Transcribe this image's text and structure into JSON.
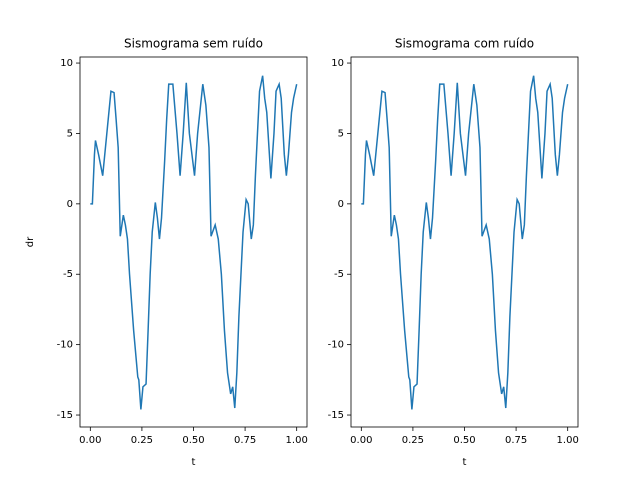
{
  "chart_data": [
    {
      "type": "line",
      "title": "Sismograma sem ruído",
      "xlabel": "t",
      "ylabel": "dr",
      "color": "#1f77b4",
      "xlim": [
        -0.05,
        1.05
      ],
      "ylim": [
        -15.85,
        10.43
      ],
      "xticks": [
        {
          "value": 0,
          "label": "0.00"
        },
        {
          "value": 0.25,
          "label": "0.25"
        },
        {
          "value": 0.5,
          "label": "0.50"
        },
        {
          "value": 0.75,
          "label": "0.75"
        },
        {
          "value": 1,
          "label": "1.00"
        }
      ],
      "yticks": [
        -15,
        -10,
        -5,
        0,
        5,
        10
      ],
      "x": [
        0,
        0.01,
        0.02,
        0.025,
        0.04,
        0.06,
        0.08,
        0.1,
        0.115,
        0.125,
        0.135,
        0.145,
        0.16,
        0.17,
        0.18,
        0.19,
        0.21,
        0.23,
        0.235,
        0.245,
        0.255,
        0.27,
        0.28,
        0.29,
        0.3,
        0.315,
        0.325,
        0.335,
        0.345,
        0.36,
        0.37,
        0.38,
        0.4,
        0.42,
        0.435,
        0.45,
        0.465,
        0.48,
        0.505,
        0.52,
        0.545,
        0.56,
        0.575,
        0.585,
        0.605,
        0.62,
        0.635,
        0.65,
        0.665,
        0.68,
        0.69,
        0.7,
        0.71,
        0.72,
        0.73,
        0.74,
        0.755,
        0.765,
        0.78,
        0.79,
        0.8,
        0.81,
        0.82,
        0.835,
        0.845,
        0.855,
        0.87,
        0.875,
        0.89,
        0.9,
        0.915,
        0.925,
        0.94,
        0.95,
        0.96,
        0.975,
        0.985,
        1.0
      ],
      "values": [
        0,
        0,
        3.5,
        4.5,
        3.5,
        2,
        5,
        8,
        7.9,
        6,
        4,
        -2.3,
        -0.8,
        -1.5,
        -2.5,
        -5,
        -9,
        -12.3,
        -12.5,
        -14.6,
        -13,
        -12.8,
        -9,
        -5,
        -2,
        0.1,
        -1,
        -2.5,
        -1,
        3,
        6,
        8.5,
        8.5,
        5,
        2,
        5,
        8.6,
        5,
        2,
        5,
        8.5,
        7,
        4,
        -2.3,
        -1.5,
        -2.5,
        -5,
        -9,
        -12,
        -13.5,
        -13,
        -14.5,
        -12,
        -8,
        -5,
        -2,
        0.3,
        0,
        -2.5,
        -1.5,
        2,
        5,
        8,
        9.1,
        7.5,
        6.5,
        3,
        1.8,
        5,
        8,
        8.5,
        7.5,
        3.5,
        2,
        3.5,
        6.5,
        7.5,
        8.5
      ]
    },
    {
      "type": "line",
      "title": "Sismograma com ruído",
      "xlabel": "t",
      "color": "#1f77b4",
      "xlim": [
        -0.05,
        1.05
      ],
      "ylim": [
        -15.85,
        10.43
      ],
      "xticks": [
        {
          "value": 0,
          "label": "0.00"
        },
        {
          "value": 0.25,
          "label": "0.25"
        },
        {
          "value": 0.5,
          "label": "0.50"
        },
        {
          "value": 0.75,
          "label": "0.75"
        },
        {
          "value": 1,
          "label": "1.00"
        }
      ],
      "yticks": [
        -15,
        -10,
        -5,
        0,
        5,
        10
      ],
      "x": [
        0,
        0.01,
        0.02,
        0.025,
        0.04,
        0.06,
        0.08,
        0.1,
        0.115,
        0.125,
        0.135,
        0.145,
        0.16,
        0.17,
        0.18,
        0.19,
        0.21,
        0.23,
        0.235,
        0.245,
        0.255,
        0.27,
        0.28,
        0.29,
        0.3,
        0.315,
        0.325,
        0.335,
        0.345,
        0.36,
        0.37,
        0.38,
        0.4,
        0.42,
        0.435,
        0.45,
        0.465,
        0.48,
        0.505,
        0.52,
        0.545,
        0.56,
        0.575,
        0.585,
        0.605,
        0.62,
        0.635,
        0.65,
        0.665,
        0.68,
        0.69,
        0.7,
        0.71,
        0.72,
        0.73,
        0.74,
        0.755,
        0.765,
        0.78,
        0.79,
        0.8,
        0.81,
        0.82,
        0.835,
        0.845,
        0.855,
        0.87,
        0.875,
        0.89,
        0.9,
        0.915,
        0.925,
        0.94,
        0.95,
        0.96,
        0.975,
        0.985,
        1.0
      ],
      "values": [
        0,
        0,
        3.5,
        4.5,
        3.5,
        2,
        5,
        8,
        7.9,
        6,
        4,
        -2.3,
        -0.8,
        -1.5,
        -2.5,
        -5,
        -9,
        -12.3,
        -12.5,
        -14.6,
        -13,
        -12.8,
        -9,
        -5,
        -2,
        0.1,
        -1,
        -2.5,
        -1,
        3,
        6,
        8.5,
        8.5,
        5,
        2,
        5,
        8.6,
        5,
        2,
        5,
        8.5,
        7,
        4,
        -2.3,
        -1.5,
        -2.5,
        -5,
        -9,
        -12,
        -13.5,
        -13,
        -14.5,
        -12,
        -8,
        -5,
        -2,
        0.3,
        0,
        -2.5,
        -1.5,
        2,
        5,
        8,
        9.1,
        7.5,
        6.5,
        3,
        1.8,
        5,
        8,
        8.5,
        7.5,
        3.5,
        2,
        3.5,
        6.5,
        7.5,
        8.5
      ]
    }
  ]
}
